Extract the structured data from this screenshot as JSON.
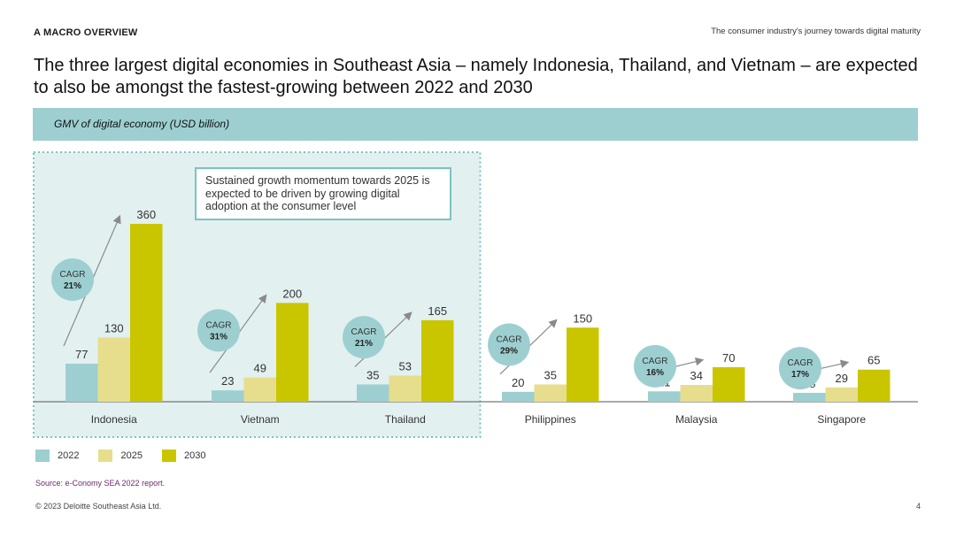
{
  "header": {
    "section_label": "A MACRO OVERVIEW",
    "top_right": "The consumer industry's journey towards digital maturity",
    "headline": "The three largest digital economies in Southeast Asia – namely Indonesia, Thailand, and Vietnam – are expected to also be amongst the fastest-growing between 2022 and 2030"
  },
  "banner": {
    "label": "GMV of digital economy (USD billion)"
  },
  "callout": {
    "text": "Sustained growth momentum towards 2025 is expected to be driven by growing digital adoption at the consumer level"
  },
  "colors": {
    "banner_bg": "#9dcfd1",
    "highlight_bg": "#e3f0f0",
    "highlight_border": "#7bc3c3",
    "series_2022": "#9dcfd1",
    "series_2025": "#e6de8c",
    "series_2030": "#c9c600",
    "cagr_bubble": "#9dcfd1"
  },
  "chart_data": {
    "type": "bar",
    "categories": [
      "Indonesia",
      "Vietnam",
      "Thailand",
      "Philippines",
      "Malaysia",
      "Singapore"
    ],
    "series": [
      {
        "name": "2022",
        "values": [
          77,
          23,
          35,
          20,
          21,
          18
        ]
      },
      {
        "name": "2025",
        "values": [
          130,
          49,
          53,
          35,
          34,
          29
        ]
      },
      {
        "name": "2030",
        "values": [
          360,
          200,
          165,
          150,
          70,
          65
        ]
      }
    ],
    "cagr": {
      "label": "CAGR",
      "values": [
        "21%",
        "31%",
        "21%",
        "29%",
        "16%",
        "17%"
      ]
    },
    "highlighted_categories": [
      "Indonesia",
      "Vietnam",
      "Thailand"
    ],
    "ylim": [
      0,
      360
    ],
    "legend_position": "bottom-left"
  },
  "footer": {
    "source": "Source: e-Conomy SEA 2022 report.",
    "copyright": "© 2023 Deloitte Southeast Asia Ltd.",
    "page_number": "4"
  }
}
